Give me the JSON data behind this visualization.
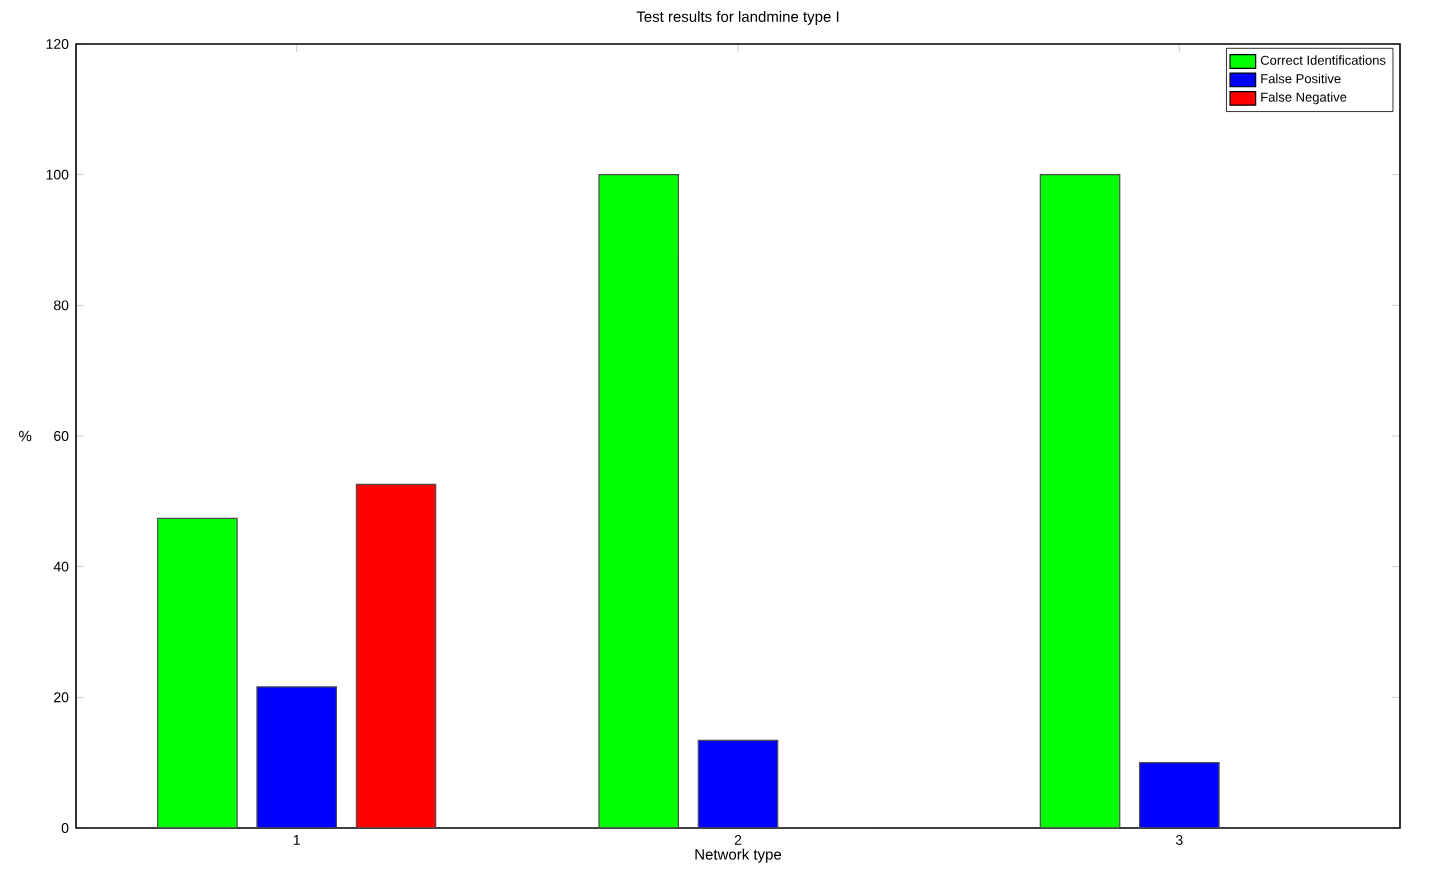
{
  "chart_data": {
    "type": "bar",
    "title": "Test results for landmine type I",
    "xlabel": "Network type",
    "ylabel": "%",
    "categories": [
      "1",
      "2",
      "3"
    ],
    "series": [
      {
        "name": "Correct Identifications",
        "color": "#00ff00",
        "values": [
          47.4,
          100,
          100
        ]
      },
      {
        "name": "False Positive",
        "color": "#0000ff",
        "values": [
          21.6,
          13.4,
          10.0
        ]
      },
      {
        "name": "False Negative",
        "color": "#ff0000",
        "values": [
          52.6,
          0,
          0
        ]
      }
    ],
    "ylim": [
      0,
      120
    ],
    "yticks": [
      0,
      20,
      40,
      60,
      80,
      100,
      120
    ],
    "legend": "top right",
    "grid": false
  }
}
